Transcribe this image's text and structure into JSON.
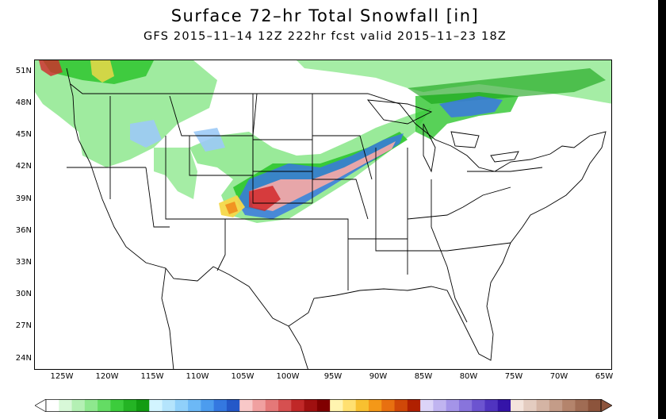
{
  "title": "Surface 72–hr Total Snowfall [in]",
  "subtitle": "GFS 2015–11–14 12Z 222hr fcst valid 2015–11–23 18Z",
  "map": {
    "lat_labels": [
      "51N",
      "48N",
      "45N",
      "42N",
      "39N",
      "36N",
      "33N",
      "30N",
      "27N",
      "24N"
    ],
    "lon_labels": [
      "125W",
      "120W",
      "115W",
      "110W",
      "105W",
      "100W",
      "95W",
      "90W",
      "85W",
      "80W",
      "75W",
      "70W",
      "65W"
    ],
    "colors": {
      "light_green": "#8ee88e",
      "green": "#2ec62e",
      "dark_green": "#12a012",
      "light_blue": "#9ccaf6",
      "blue": "#3a78e0",
      "pink": "#f0a8a8",
      "red": "#d2282a",
      "dark_red": "#8a0a0a",
      "yellow": "#f6d84a",
      "orange": "#f09020",
      "state_lines": "#000000"
    }
  },
  "colorbar": {
    "colors": [
      "#ffffff",
      "#d8f8d8",
      "#b4f0b4",
      "#8ee88e",
      "#64dc64",
      "#3ccc3c",
      "#24b424",
      "#129c12",
      "#d2f4ff",
      "#b4e4fc",
      "#90d0fa",
      "#6cb8f6",
      "#4c9cee",
      "#3478e0",
      "#2458c8",
      "#f8c8c8",
      "#f0a0a0",
      "#e47878",
      "#d65050",
      "#c02828",
      "#a01010",
      "#800000",
      "#fff4b0",
      "#ffe070",
      "#f8c030",
      "#f49818",
      "#e87010",
      "#d04808",
      "#b02000",
      "#dcd4f8",
      "#c0b4f0",
      "#a494e8",
      "#8874dc",
      "#6c54d0",
      "#5034c0",
      "#3414a8",
      "#f4e4dc",
      "#e4ccc0",
      "#d4b4a4",
      "#c49c88",
      "#b4846c",
      "#a06c54",
      "#8c543c"
    ]
  }
}
